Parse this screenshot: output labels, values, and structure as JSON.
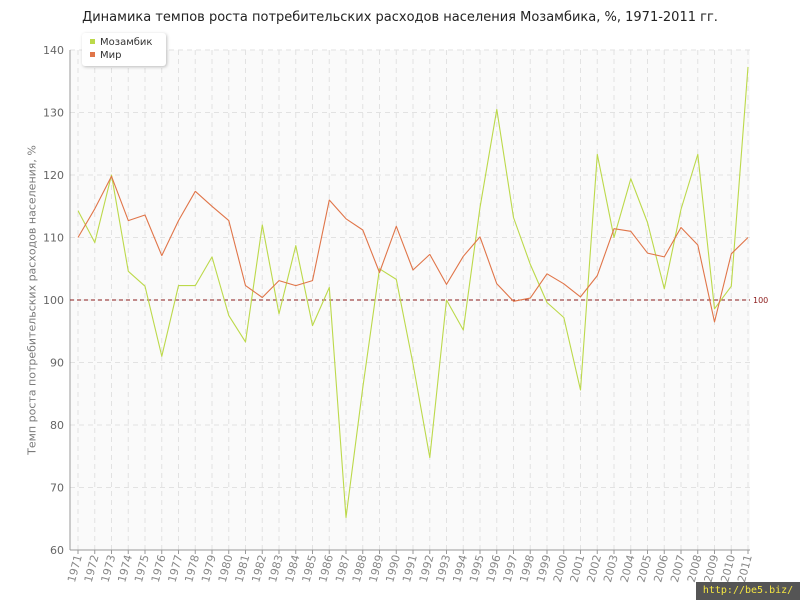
{
  "chart_data": {
    "type": "line",
    "title": "Динамика темпов роста потребительских расходов населения Мозамбика, %, 1971-2011 гг.",
    "xlabel": "",
    "ylabel": "Темп роста потребительских расходов населения, %",
    "ylim": [
      60,
      140
    ],
    "yticks": [
      60,
      70,
      80,
      90,
      100,
      110,
      120,
      130,
      140
    ],
    "grid": true,
    "legend": "top-left",
    "categories": [
      "1971",
      "1972",
      "1973",
      "1974",
      "1975",
      "1976",
      "1977",
      "1978",
      "1979",
      "1980",
      "1981",
      "1982",
      "1983",
      "1984",
      "1985",
      "1986",
      "1987",
      "1988",
      "1989",
      "1990",
      "1991",
      "1992",
      "1993",
      "1994",
      "1995",
      "1996",
      "1997",
      "1998",
      "1999",
      "2000",
      "2001",
      "2002",
      "2003",
      "2004",
      "2005",
      "2006",
      "2007",
      "2008",
      "2009",
      "2010",
      "2011"
    ],
    "series": [
      {
        "name": "Мозамбик",
        "color": "#bcd94a",
        "values": [
          114.3,
          109.2,
          120.0,
          104.6,
          102.2,
          91.0,
          102.3,
          102.3,
          106.9,
          97.5,
          93.3,
          112.0,
          97.8,
          108.7,
          95.9,
          102.0,
          65.2,
          86.0,
          105.0,
          103.3,
          89.8,
          74.8,
          100.0,
          95.2,
          114.8,
          130.5,
          113.2,
          105.7,
          99.6,
          97.2,
          85.6,
          123.3,
          110.0,
          119.4,
          112.4,
          101.8,
          114.5,
          123.3,
          98.6,
          102.2,
          137.3
        ]
      },
      {
        "name": "Мир",
        "color": "#e07549",
        "values": [
          110.0,
          114.6,
          119.8,
          112.7,
          113.6,
          107.1,
          112.7,
          117.4,
          115.0,
          112.7,
          102.3,
          100.4,
          103.1,
          102.3,
          103.1,
          116.0,
          113.0,
          111.2,
          104.4,
          111.8,
          104.8,
          107.3,
          102.5,
          107.0,
          110.1,
          102.6,
          99.8,
          100.3,
          104.2,
          102.6,
          100.5,
          103.9,
          111.4,
          111.0,
          107.5,
          106.9,
          111.6,
          108.8,
          96.5,
          107.4,
          110.0
        ]
      }
    ],
    "reference_line": {
      "value": 100,
      "label": "100",
      "color": "#8b1a1a"
    }
  },
  "watermark": "http://be5.biz/"
}
